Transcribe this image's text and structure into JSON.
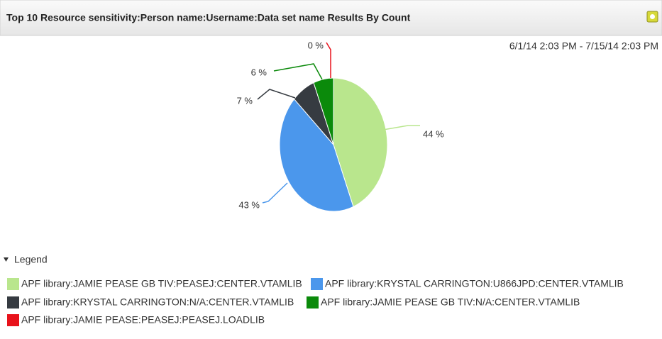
{
  "chart_data": {
    "type": "pie",
    "title": "Top 10 Resource sensitivity:Person name:Username:Data set name Results By Count",
    "subtitle": "6/1/14 2:03 PM - 7/15/14 2:03 PM",
    "legend_title": "Legend",
    "categories": [
      "APF library:JAMIE PEASE GB TIV:PEASEJ:CENTER.VTAMLIB",
      "APF library:KRYSTAL CARRINGTON:U866JPD:CENTER.VTAMLIB",
      "APF library:KRYSTAL CARRINGTON:N/A:CENTER.VTAMLIB",
      "APF library:JAMIE PEASE GB TIV:N/A:CENTER.VTAMLIB",
      "APF library:JAMIE PEASE:PEASEJ:PEASEJ.LOADLIB"
    ],
    "values": [
      44,
      43,
      7,
      6,
      0
    ],
    "value_labels": [
      "44 %",
      "43 %",
      "7 %",
      "6 %",
      "0 %"
    ],
    "colors": [
      "#b9e68d",
      "#4b97ec",
      "#363b41",
      "#0b8a0b",
      "#e8121b"
    ]
  }
}
